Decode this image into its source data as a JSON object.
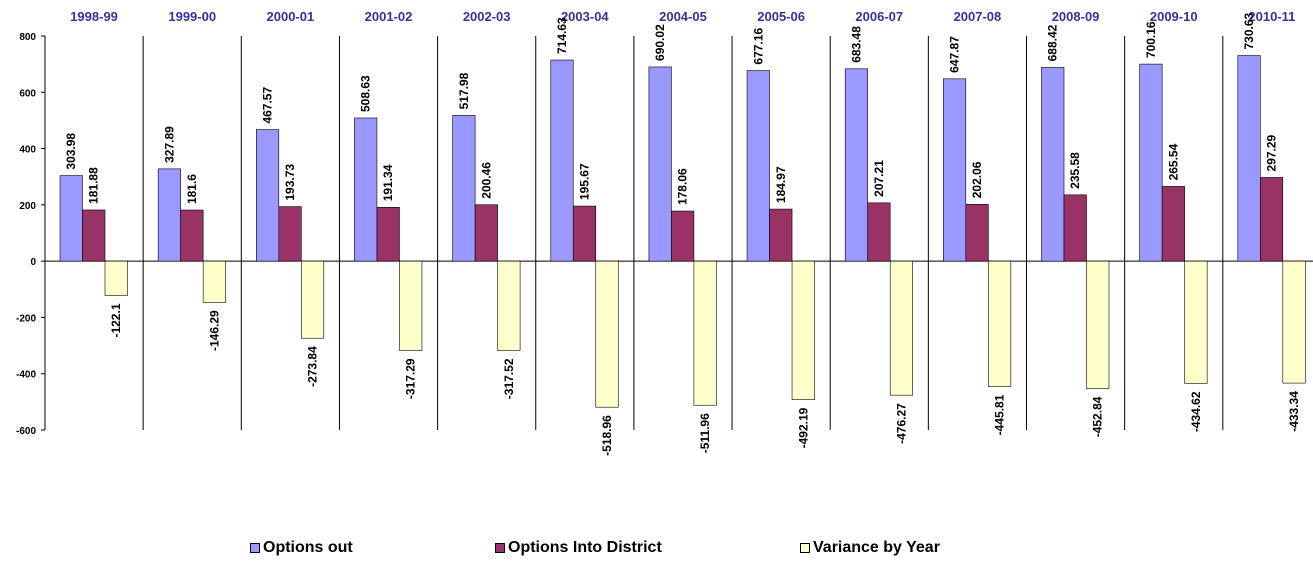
{
  "chart_data": {
    "type": "bar",
    "categories": [
      "1998-99",
      "1999-00",
      "2000-01",
      "2001-02",
      "2002-03",
      "2003-04",
      "2004-05",
      "2005-06",
      "2006-07",
      "2007-08",
      "2008-09",
      "2009-10",
      "2010-11"
    ],
    "series": [
      {
        "name": "Options out",
        "color": "#9999ff",
        "values": [
          303.98,
          327.89,
          467.57,
          508.63,
          517.98,
          714.63,
          690.02,
          677.16,
          683.48,
          647.87,
          688.42,
          700.16,
          730.63
        ]
      },
      {
        "name": "Options Into District",
        "color": "#993366",
        "values": [
          181.88,
          181.6,
          193.73,
          191.34,
          200.46,
          195.67,
          178.06,
          184.97,
          207.21,
          202.06,
          235.58,
          265.54,
          297.29
        ]
      },
      {
        "name": "Variance by Year",
        "color": "#ffffcc",
        "values": [
          -122.1,
          -146.29,
          -273.84,
          -317.29,
          -317.52,
          -518.96,
          -511.96,
          -492.19,
          -476.27,
          -445.81,
          -452.84,
          -434.62,
          -433.34
        ]
      }
    ],
    "ylim": [
      -600,
      800
    ],
    "yticks": [
      800,
      600,
      400,
      200,
      0,
      -200,
      -400,
      -600
    ],
    "legend_position": "bottom",
    "grid": false
  }
}
